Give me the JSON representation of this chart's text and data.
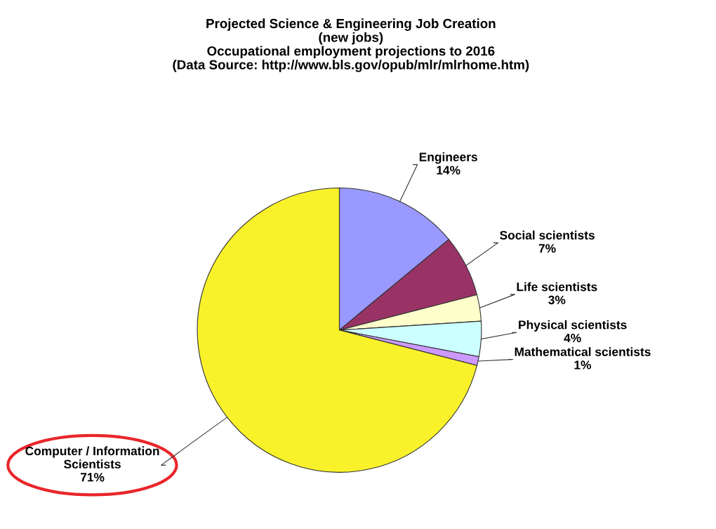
{
  "chart_data": {
    "type": "pie",
    "title": "Projected Science & Engineering Job Creation\n(new jobs)\nOccupational employment projections to 2016\n(Data Source: http://www.bls.gov/opub/mlr/mlrhome.htm)",
    "categories": [
      "Engineers",
      "Social scientists",
      "Life scientists",
      "Physical scientists",
      "Mathematical scientists",
      "Computer / Information\nScientists"
    ],
    "values": [
      14,
      7,
      3,
      4,
      1,
      71
    ],
    "value_labels": [
      "14%",
      "7%",
      "3%",
      "4%",
      "1%",
      "71%"
    ],
    "colors": [
      "#9999ff",
      "#993366",
      "#ffffcc",
      "#ccffff",
      "#cc99ff",
      "#f9f22a"
    ],
    "legend": false
  }
}
